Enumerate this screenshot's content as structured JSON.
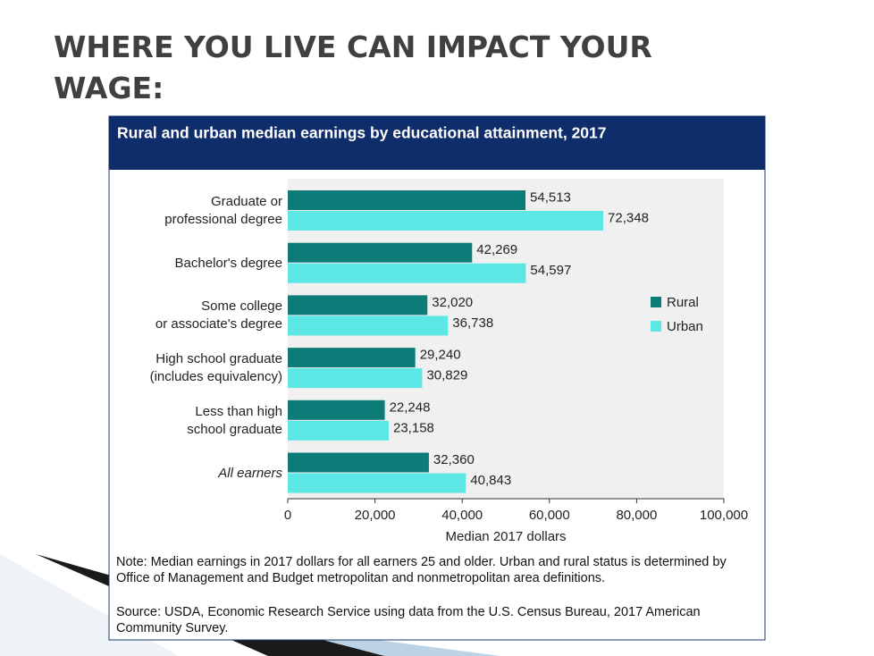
{
  "slide_title": "WHERE YOU LIVE CAN IMPACT YOUR WAGE:",
  "chart_data": {
    "type": "barh",
    "title": "Rural and urban median earnings by educational attainment, 2017",
    "categories": [
      "Graduate or\nprofessional degree",
      "Bachelor's degree",
      "Some college\nor associate's degree",
      "High school graduate\n(includes equivalency)",
      "Less than high\nschool graduate",
      "All earners"
    ],
    "series": [
      {
        "name": "Rural",
        "color": "#0d7c78",
        "values": [
          54513,
          42269,
          32020,
          29240,
          22248,
          32360
        ],
        "value_labels": [
          "54,513",
          "42,269",
          "32,020",
          "29,240",
          "22,248",
          "32,360"
        ]
      },
      {
        "name": "Urban",
        "color": "#5ce6e4",
        "values": [
          72348,
          54597,
          36738,
          30829,
          23158,
          40843
        ],
        "value_labels": [
          "72,348",
          "54,597",
          "36,738",
          "30,829",
          "23,158",
          "40,843"
        ]
      }
    ],
    "xlim": [
      0,
      100000
    ],
    "xticks": [
      0,
      {
        "value": 20000,
        "label": "20,000"
      },
      {
        "value": 40000,
        "label": "40,000"
      },
      {
        "value": 60000,
        "label": "60,000"
      },
      {
        "value": 80000,
        "label": "80,000"
      },
      {
        "value": 100000,
        "label": "100,000"
      }
    ],
    "xlabel": "Median 2017 dollars",
    "note": "Note: Median earnings in 2017 dollars for all earners 25 and older. Urban and rural status is determined by Office of Management and Budget metropolitan and nonmetropolitan area definitions.",
    "source": "Source: USDA, Economic Research Service using data from the U.S. Census Bureau, 2017 American Community Survey."
  }
}
